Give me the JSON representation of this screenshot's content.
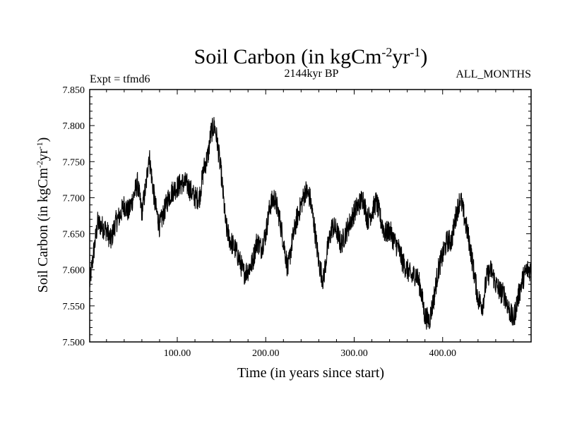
{
  "chart_data": {
    "type": "line",
    "title_main": "Soil Carbon (in kgCm",
    "title_exp1": "-2",
    "title_mid": "yr",
    "title_exp2": "-1",
    "title_close": ")",
    "subtitle_left": "Expt = tfmd6",
    "subtitle_center": "2144kyr BP",
    "subtitle_right": "ALL_MONTHS",
    "xlabel": "Time (in years since start)",
    "ylabel_main": "Soil Carbon (in kgCm",
    "ylabel_exp1": "-2",
    "ylabel_mid": "yr",
    "ylabel_exp2": "-1",
    "ylabel_close": ")",
    "xlim": [
      1,
      500
    ],
    "ylim": [
      7.5,
      7.85
    ],
    "x_ticks": [
      100,
      200,
      300,
      400
    ],
    "x_tick_labels": [
      "100.00",
      "200.00",
      "300.00",
      "400.00"
    ],
    "y_ticks": [
      7.5,
      7.55,
      7.6,
      7.65,
      7.7,
      7.75,
      7.8,
      7.85
    ],
    "y_tick_labels": [
      "7.500",
      "7.550",
      "7.600",
      "7.650",
      "7.700",
      "7.750",
      "7.800",
      "7.850"
    ],
    "series": [
      {
        "name": "Soil Carbon",
        "color": "#000000",
        "x": [
          1,
          5,
          10,
          15,
          20,
          25,
          30,
          35,
          40,
          45,
          50,
          55,
          60,
          65,
          68,
          72,
          75,
          80,
          85,
          90,
          95,
          100,
          105,
          110,
          115,
          120,
          125,
          130,
          135,
          138,
          142,
          145,
          150,
          155,
          160,
          165,
          170,
          175,
          180,
          185,
          190,
          195,
          200,
          205,
          210,
          215,
          220,
          225,
          230,
          235,
          240,
          245,
          250,
          255,
          260,
          265,
          270,
          275,
          280,
          285,
          290,
          295,
          300,
          305,
          310,
          315,
          320,
          325,
          330,
          335,
          340,
          345,
          350,
          355,
          360,
          365,
          370,
          375,
          380,
          385,
          390,
          395,
          400,
          405,
          410,
          415,
          420,
          425,
          430,
          435,
          440,
          445,
          450,
          455,
          460,
          465,
          470,
          475,
          480,
          485,
          490,
          495,
          500
        ],
        "y": [
          7.58,
          7.62,
          7.665,
          7.66,
          7.655,
          7.64,
          7.665,
          7.675,
          7.69,
          7.68,
          7.7,
          7.72,
          7.68,
          7.72,
          7.76,
          7.72,
          7.69,
          7.66,
          7.68,
          7.7,
          7.71,
          7.715,
          7.72,
          7.72,
          7.71,
          7.7,
          7.7,
          7.74,
          7.76,
          7.79,
          7.8,
          7.78,
          7.73,
          7.66,
          7.64,
          7.63,
          7.615,
          7.595,
          7.6,
          7.61,
          7.64,
          7.63,
          7.65,
          7.69,
          7.7,
          7.675,
          7.64,
          7.6,
          7.64,
          7.67,
          7.69,
          7.71,
          7.7,
          7.66,
          7.61,
          7.585,
          7.63,
          7.66,
          7.655,
          7.635,
          7.65,
          7.665,
          7.68,
          7.69,
          7.7,
          7.67,
          7.68,
          7.695,
          7.67,
          7.65,
          7.655,
          7.64,
          7.63,
          7.61,
          7.6,
          7.59,
          7.595,
          7.575,
          7.535,
          7.53,
          7.56,
          7.6,
          7.62,
          7.64,
          7.64,
          7.675,
          7.7,
          7.67,
          7.64,
          7.6,
          7.56,
          7.55,
          7.59,
          7.6,
          7.58,
          7.57,
          7.565,
          7.545,
          7.53,
          7.56,
          7.585,
          7.6,
          7.6
        ]
      }
    ]
  }
}
